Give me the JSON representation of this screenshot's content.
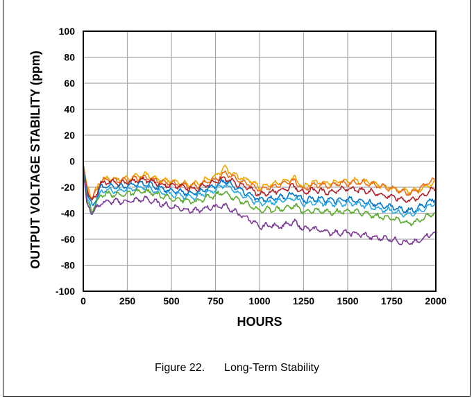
{
  "caption": {
    "figure_label": "Figure 22.",
    "title": "Long-Term Stability"
  },
  "chart_data": {
    "type": "line",
    "xlabel": "HOURS",
    "ylabel": "OUTPUT VOLTAGE STABILITY (ppm)",
    "xlim": [
      0,
      2000
    ],
    "ylim": [
      -100,
      100
    ],
    "x_ticks": [
      0,
      250,
      500,
      750,
      1000,
      1250,
      1500,
      1750,
      2000
    ],
    "x_tick_labels": [
      "0",
      "250",
      "500",
      "750",
      "1000",
      "1250",
      "1500",
      "1750",
      "2000"
    ],
    "y_ticks": [
      100,
      80,
      60,
      40,
      20,
      0,
      -20,
      -40,
      -60,
      -80,
      -100
    ],
    "y_tick_labels": [
      "100",
      "80",
      "60",
      "40",
      "20",
      "0",
      "-20",
      "-40",
      "-60",
      "-80",
      "-100"
    ],
    "grid": true,
    "x": [
      0,
      20,
      50,
      100,
      150,
      200,
      250,
      300,
      350,
      400,
      450,
      500,
      550,
      600,
      650,
      700,
      750,
      800,
      850,
      900,
      950,
      1000,
      1050,
      1100,
      1150,
      1200,
      1250,
      1300,
      1350,
      1400,
      1450,
      1500,
      1550,
      1600,
      1650,
      1700,
      1750,
      1800,
      1850,
      1900,
      1950,
      2000
    ],
    "series": [
      {
        "color": "#f0a500",
        "values": [
          -2,
          -18,
          -28,
          -14,
          -13,
          -14,
          -13,
          -12,
          -10,
          -13,
          -15,
          -15,
          -16,
          -18,
          -17,
          -14,
          -12,
          -5,
          -10,
          -13,
          -15,
          -20,
          -18,
          -17,
          -15,
          -13,
          -20,
          -16,
          -16,
          -17,
          -15,
          -15,
          -15,
          -16,
          -17,
          -19,
          -20,
          -22,
          -23,
          -22,
          -19,
          -17
        ]
      },
      {
        "color": "#e8701e",
        "values": [
          -2,
          -20,
          -30,
          -15,
          -14,
          -15,
          -15,
          -13,
          -12,
          -14,
          -16,
          -17,
          -18,
          -19,
          -19,
          -16,
          -14,
          -9,
          -12,
          -16,
          -18,
          -22,
          -20,
          -19,
          -17,
          -15,
          -22,
          -18,
          -18,
          -19,
          -17,
          -17,
          -16,
          -17,
          -18,
          -20,
          -21,
          -23,
          -25,
          -22,
          -17,
          -14
        ]
      },
      {
        "color": "#b0202a",
        "values": [
          -3,
          -22,
          -32,
          -17,
          -16,
          -17,
          -16,
          -15,
          -14,
          -16,
          -18,
          -19,
          -19,
          -21,
          -21,
          -18,
          -16,
          -13,
          -16,
          -19,
          -21,
          -26,
          -24,
          -23,
          -21,
          -19,
          -25,
          -22,
          -23,
          -24,
          -22,
          -21,
          -22,
          -23,
          -24,
          -26,
          -27,
          -29,
          -30,
          -28,
          -24,
          -21
        ]
      },
      {
        "color": "#0077c8",
        "values": [
          -3,
          -25,
          -35,
          -20,
          -19,
          -20,
          -19,
          -18,
          -17,
          -19,
          -21,
          -23,
          -23,
          -25,
          -24,
          -21,
          -19,
          -15,
          -19,
          -23,
          -26,
          -30,
          -29,
          -28,
          -27,
          -25,
          -30,
          -29,
          -29,
          -30,
          -30,
          -29,
          -30,
          -31,
          -33,
          -34,
          -35,
          -37,
          -38,
          -36,
          -32,
          -29
        ]
      },
      {
        "color": "#29a8e0",
        "values": [
          -4,
          -28,
          -40,
          -23,
          -22,
          -23,
          -22,
          -21,
          -20,
          -22,
          -24,
          -26,
          -26,
          -28,
          -27,
          -24,
          -22,
          -18,
          -22,
          -26,
          -29,
          -33,
          -32,
          -31,
          -30,
          -28,
          -33,
          -32,
          -32,
          -33,
          -33,
          -32,
          -33,
          -34,
          -36,
          -37,
          -38,
          -40,
          -41,
          -39,
          -35,
          -32
        ]
      },
      {
        "color": "#5aaa2c",
        "values": [
          -5,
          -30,
          -38,
          -26,
          -25,
          -26,
          -25,
          -24,
          -23,
          -25,
          -27,
          -29,
          -29,
          -31,
          -31,
          -28,
          -26,
          -24,
          -28,
          -31,
          -34,
          -38,
          -37,
          -37,
          -36,
          -34,
          -39,
          -38,
          -38,
          -39,
          -39,
          -38,
          -39,
          -40,
          -42,
          -43,
          -44,
          -46,
          -48,
          -46,
          -42,
          -40
        ]
      },
      {
        "color": "#7b3a96",
        "values": [
          -6,
          -32,
          -40,
          -32,
          -31,
          -31,
          -31,
          -30,
          -29,
          -31,
          -33,
          -35,
          -36,
          -38,
          -38,
          -36,
          -35,
          -34,
          -38,
          -42,
          -45,
          -51,
          -49,
          -50,
          -49,
          -47,
          -52,
          -52,
          -53,
          -55,
          -55,
          -55,
          -56,
          -57,
          -59,
          -59,
          -60,
          -62,
          -63,
          -62,
          -57,
          -55
        ]
      }
    ]
  }
}
